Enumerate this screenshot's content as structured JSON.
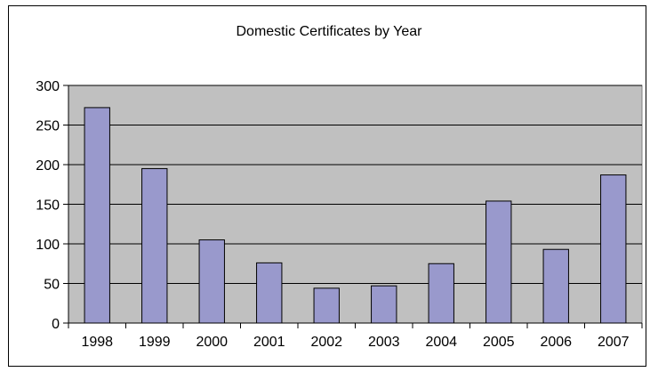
{
  "chart_data": {
    "type": "bar",
    "title": "Domestic Certificates by Year",
    "xlabel": "",
    "ylabel": "",
    "categories": [
      "1998",
      "1999",
      "2000",
      "2001",
      "2002",
      "2003",
      "2004",
      "2005",
      "2006",
      "2007"
    ],
    "series": [
      {
        "values": [
          272,
          195,
          105,
          76,
          44,
          47,
          75,
          154,
          93,
          187
        ]
      }
    ],
    "ylim": [
      0,
      300
    ],
    "yticks": [
      "0",
      "50",
      "100",
      "150",
      "200",
      "250",
      "300"
    ],
    "grid": true,
    "legend": "none",
    "colors": {
      "bar": "#9999cc",
      "plot_background": "#c0c0c0",
      "gridline": "#000000"
    }
  }
}
